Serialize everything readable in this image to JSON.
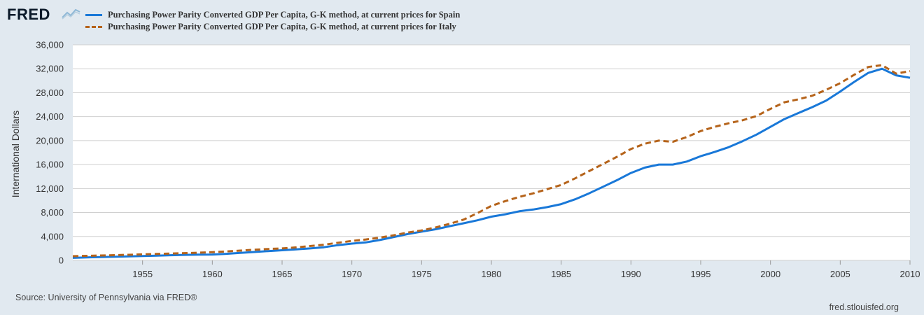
{
  "header": {
    "logo_text": "FRED"
  },
  "chart_data": {
    "type": "line",
    "title": "",
    "xlabel": "",
    "ylabel": "International Dollars",
    "xlim": [
      1950,
      2010
    ],
    "ylim": [
      0,
      36000
    ],
    "x_ticks": [
      "1955",
      "1960",
      "1965",
      "1970",
      "1975",
      "1980",
      "1985",
      "1990",
      "1995",
      "2000",
      "2005",
      "2010"
    ],
    "y_ticks": [
      "0",
      "4,000",
      "8,000",
      "12,000",
      "16,000",
      "20,000",
      "24,000",
      "28,000",
      "32,000",
      "36,000"
    ],
    "grid": "horizontal",
    "legend_position": "top-left",
    "x": [
      1950,
      1951,
      1952,
      1953,
      1954,
      1955,
      1956,
      1957,
      1958,
      1959,
      1960,
      1961,
      1962,
      1963,
      1964,
      1965,
      1966,
      1967,
      1968,
      1969,
      1970,
      1971,
      1972,
      1973,
      1974,
      1975,
      1976,
      1977,
      1978,
      1979,
      1980,
      1981,
      1982,
      1983,
      1984,
      1985,
      1986,
      1987,
      1988,
      1989,
      1990,
      1991,
      1992,
      1993,
      1994,
      1995,
      1996,
      1997,
      1998,
      1999,
      2000,
      2001,
      2002,
      2003,
      2004,
      2005,
      2006,
      2007,
      2008,
      2009,
      2010
    ],
    "series": [
      {
        "name": "Purchasing Power Parity Converted GDP Per Capita, G-K method, at current prices for Spain",
        "color": "#1978d8",
        "style": "solid",
        "values": [
          420,
          500,
          560,
          620,
          680,
          740,
          800,
          860,
          920,
          960,
          980,
          1100,
          1250,
          1400,
          1550,
          1700,
          1850,
          2000,
          2200,
          2550,
          2800,
          3000,
          3400,
          3900,
          4400,
          4800,
          5200,
          5700,
          6200,
          6700,
          7300,
          7700,
          8200,
          8500,
          8900,
          9400,
          10200,
          11200,
          12300,
          13400,
          14600,
          15500,
          16000,
          16000,
          16500,
          17400,
          18100,
          18900,
          19900,
          21000,
          22300,
          23600,
          24600,
          25600,
          26700,
          28200,
          29800,
          31300,
          32000,
          30900,
          30500
        ]
      },
      {
        "name": "Purchasing Power Parity Converted GDP Per Capita, G-K method, at current prices for Italy",
        "color": "#b5631a",
        "style": "dashed",
        "values": [
          700,
          760,
          820,
          880,
          940,
          1000,
          1070,
          1140,
          1210,
          1280,
          1380,
          1500,
          1640,
          1780,
          1900,
          2000,
          2170,
          2400,
          2620,
          2950,
          3250,
          3500,
          3800,
          4200,
          4650,
          5000,
          5500,
          6100,
          6800,
          7900,
          9100,
          9900,
          10600,
          11200,
          11900,
          12600,
          13700,
          14900,
          16100,
          17300,
          18600,
          19500,
          20000,
          19800,
          20600,
          21600,
          22300,
          22900,
          23400,
          24100,
          25300,
          26400,
          26900,
          27500,
          28500,
          29600,
          31000,
          32300,
          32600,
          31200,
          31600
        ]
      }
    ],
    "source_text": "Source: University of Pennsylvania via FRED®",
    "credit_text": "fred.stlouisfed.org"
  }
}
